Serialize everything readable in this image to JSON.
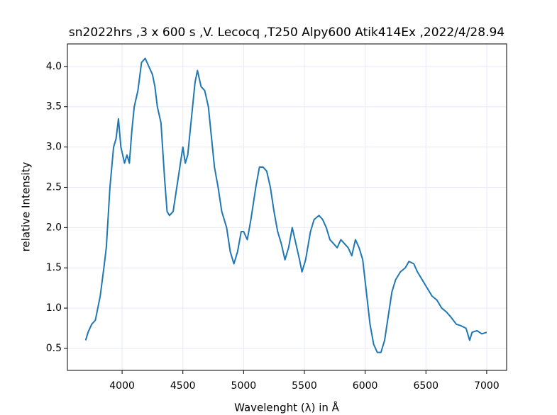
{
  "chart_data": {
    "type": "line",
    "title": "sn2022hrs ,3 x 600 s ,V. Lecocq ,T250 Alpy600 Atik414Ex ,2022/4/28.94",
    "x_label": "Wavelenght (λ) in Å",
    "y_label": "relative Intensity",
    "x": [
      3700,
      3720,
      3750,
      3780,
      3800,
      3820,
      3850,
      3870,
      3900,
      3930,
      3950,
      3970,
      3990,
      4020,
      4040,
      4060,
      4080,
      4100,
      4130,
      4160,
      4190,
      4220,
      4250,
      4270,
      4290,
      4320,
      4350,
      4370,
      4390,
      4420,
      4450,
      4480,
      4500,
      4520,
      4540,
      4560,
      4580,
      4600,
      4620,
      4650,
      4680,
      4710,
      4730,
      4760,
      4790,
      4820,
      4860,
      4890,
      4920,
      4950,
      4980,
      5000,
      5030,
      5060,
      5100,
      5130,
      5160,
      5190,
      5220,
      5250,
      5280,
      5310,
      5340,
      5370,
      5400,
      5430,
      5460,
      5480,
      5510,
      5550,
      5580,
      5620,
      5650,
      5680,
      5710,
      5740,
      5770,
      5800,
      5830,
      5860,
      5890,
      5920,
      5950,
      5980,
      6010,
      6040,
      6070,
      6100,
      6130,
      6160,
      6190,
      6220,
      6250,
      6290,
      6330,
      6360,
      6400,
      6430,
      6470,
      6510,
      6550,
      6590,
      6630,
      6670,
      6710,
      6750,
      6790,
      6830,
      6860,
      6880,
      6920,
      6960,
      7000
    ],
    "series": [
      {
        "name": "spectrum",
        "color": "#1f77b4",
        "values": [
          0.6,
          0.7,
          0.8,
          0.85,
          1.0,
          1.15,
          1.5,
          1.75,
          2.5,
          3.0,
          3.1,
          3.35,
          3.0,
          2.8,
          2.9,
          2.8,
          3.2,
          3.5,
          3.7,
          4.05,
          4.1,
          4.0,
          3.9,
          3.75,
          3.5,
          3.3,
          2.6,
          2.2,
          2.15,
          2.2,
          2.5,
          2.8,
          3.0,
          2.8,
          2.9,
          3.2,
          3.5,
          3.8,
          3.95,
          3.75,
          3.7,
          3.5,
          3.2,
          2.75,
          2.5,
          2.2,
          2.0,
          1.7,
          1.55,
          1.7,
          1.95,
          1.95,
          1.85,
          2.1,
          2.5,
          2.75,
          2.75,
          2.7,
          2.5,
          2.2,
          1.95,
          1.8,
          1.6,
          1.75,
          2.0,
          1.8,
          1.6,
          1.45,
          1.6,
          1.95,
          2.1,
          2.15,
          2.1,
          2.0,
          1.85,
          1.8,
          1.75,
          1.85,
          1.8,
          1.75,
          1.65,
          1.85,
          1.75,
          1.6,
          1.2,
          0.8,
          0.55,
          0.45,
          0.45,
          0.6,
          0.9,
          1.2,
          1.35,
          1.45,
          1.5,
          1.58,
          1.55,
          1.45,
          1.35,
          1.25,
          1.15,
          1.1,
          1.0,
          0.95,
          0.88,
          0.8,
          0.78,
          0.75,
          0.6,
          0.7,
          0.72,
          0.68,
          0.7
        ]
      }
    ],
    "xlim": [
      3550,
      7164
    ],
    "ylim": [
      0.227,
      4.28
    ],
    "xticks": [
      4000,
      4500,
      5000,
      5500,
      6000,
      6500,
      7000
    ],
    "yticks": [
      0.5,
      {
        "value": 1,
        "label": "1.0"
      },
      1.5,
      {
        "value": 2,
        "label": "2.0"
      },
      2.5,
      {
        "value": 3,
        "label": "3.0"
      },
      3.5,
      {
        "value": 4,
        "label": "4.0"
      }
    ],
    "grid": true
  }
}
